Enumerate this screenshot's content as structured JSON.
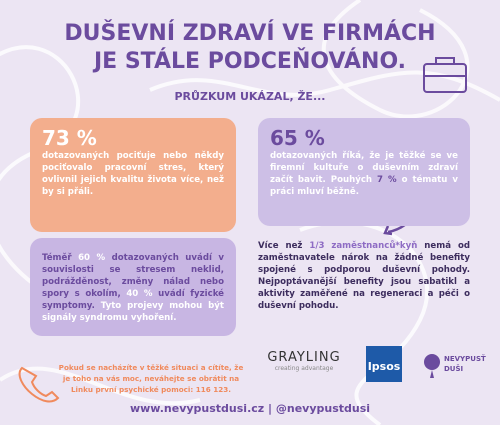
{
  "title": {
    "line1": "DUŠEVNÍ ZDRAVÍ VE FIRMÁCH",
    "line2": "JE STÁLE PODCEŇOVÁNO."
  },
  "subtitle": "PRŮZKUM UKÁZAL, ŽE...",
  "card1": {
    "figure": "73 %",
    "text": "dotazovaných pociťuje nebo někdy pociťovalo pracovní stres, který ovlivnil jejich kvalitu života více, než by si přáli."
  },
  "card2": {
    "figure": "65 %",
    "text": [
      "dotazovaných říká, že je těžké se ve firemní kultuře o duševním zdraví začít bavit. Pouhých ",
      "7 %",
      " o tématu v práci mluví běžně."
    ]
  },
  "card3": {
    "text": [
      "Téměř ",
      "60 %",
      " dotazovaných uvádí v souvislosti se stresem neklid, podrážděnost, změny nálad nebo spory s okolím, ",
      "40 %",
      " uvádí fyzické symptomy. ",
      "Tyto projevy mohou být signály syndromu vyhoření."
    ]
  },
  "note": {
    "text": [
      "Více než ",
      "1/3 zaměstnanců*kyň",
      " nemá od zaměstnavatele nárok na žádné benefity spojené s podporou duševní pohody. Nejpoptávanější benefity jsou sabatikl a aktivity zaměřené na regeneraci a péči o duševní pohodu."
    ]
  },
  "help": "Pokud se nacházíte v těžké situaci a cítíte, že je toho na vás moc, neváhejte se obrátit na Linku první psychické pomoci: 116 123.",
  "logos": {
    "grayling": "GRAYLING",
    "grayling_tag": "creating advantage",
    "ipsos": "Ipsos",
    "nevypust": [
      "NEVYPUSŤ",
      "DUŠI"
    ]
  },
  "footer": "www.nevypustdusi.cz | @nevypustdusi"
}
